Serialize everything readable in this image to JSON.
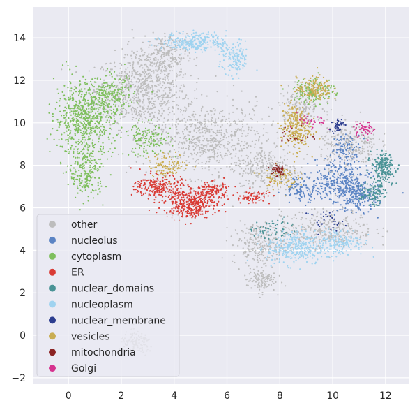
{
  "chart_data": {
    "type": "scatter",
    "title": "",
    "xlabel": "",
    "ylabel": "",
    "xlim": [
      -1.35,
      12.9
    ],
    "ylim": [
      -2.3,
      15.45
    ],
    "xticks": [
      0,
      2,
      4,
      6,
      8,
      10,
      12
    ],
    "yticks": [
      -2,
      0,
      2,
      4,
      6,
      8,
      10,
      12,
      14
    ],
    "grid": true,
    "legend_position": "lower-left",
    "background": "#eaeaf2",
    "series": [
      {
        "name": "other",
        "color": "#bdbdbd",
        "clusters": [
          {
            "cx": 2.8,
            "cy": 11.5,
            "rx": 1.6,
            "ry": 1.6,
            "n": 700
          },
          {
            "cx": 5.3,
            "cy": 9.2,
            "rx": 2.0,
            "ry": 1.6,
            "n": 700
          },
          {
            "cx": 3.6,
            "cy": 13.2,
            "rx": 0.8,
            "ry": 0.9,
            "n": 220
          },
          {
            "cx": 7.6,
            "cy": 7.8,
            "rx": 1.0,
            "ry": 0.9,
            "n": 260
          },
          {
            "cx": 7.2,
            "cy": 4.3,
            "rx": 0.9,
            "ry": 0.9,
            "n": 240
          },
          {
            "cx": 7.3,
            "cy": 2.6,
            "rx": 0.5,
            "ry": 0.5,
            "n": 120
          },
          {
            "cx": 9.8,
            "cy": 5.0,
            "rx": 1.6,
            "ry": 0.8,
            "n": 300
          },
          {
            "cx": 10.6,
            "cy": 9.0,
            "rx": 1.0,
            "ry": 1.0,
            "n": 260
          },
          {
            "cx": 2.6,
            "cy": -0.4,
            "rx": 0.6,
            "ry": 0.5,
            "n": 120
          },
          {
            "cx": 8.8,
            "cy": 10.8,
            "rx": 0.8,
            "ry": 0.8,
            "n": 160
          }
        ]
      },
      {
        "name": "nucleolus",
        "color": "#5b84c4",
        "clusters": [
          {
            "cx": 10.3,
            "cy": 7.2,
            "rx": 1.0,
            "ry": 1.0,
            "n": 360
          },
          {
            "cx": 11.0,
            "cy": 6.5,
            "rx": 0.6,
            "ry": 0.6,
            "n": 180
          },
          {
            "cx": 8.8,
            "cy": 6.9,
            "rx": 0.6,
            "ry": 0.5,
            "n": 100
          },
          {
            "cx": 10.5,
            "cy": 8.8,
            "rx": 0.5,
            "ry": 0.6,
            "n": 80
          }
        ]
      },
      {
        "name": "cytoplasm",
        "color": "#7fbf5e",
        "clusters": [
          {
            "cx": 0.6,
            "cy": 10.2,
            "rx": 1.0,
            "ry": 1.6,
            "n": 650
          },
          {
            "cx": 0.7,
            "cy": 7.6,
            "rx": 0.6,
            "ry": 1.1,
            "n": 200
          },
          {
            "cx": 1.6,
            "cy": 11.3,
            "rx": 0.8,
            "ry": 0.8,
            "n": 200
          },
          {
            "cx": 3.0,
            "cy": 9.2,
            "rx": 0.8,
            "ry": 0.7,
            "n": 150
          },
          {
            "cx": 9.3,
            "cy": 11.5,
            "rx": 0.7,
            "ry": 0.6,
            "n": 120
          }
        ]
      },
      {
        "name": "ER",
        "color": "#d93b35",
        "clusters": [
          {
            "cx": 4.6,
            "cy": 6.2,
            "rx": 0.9,
            "ry": 0.6,
            "n": 380
          },
          {
            "cx": 3.4,
            "cy": 7.0,
            "rx": 0.8,
            "ry": 0.5,
            "n": 220
          },
          {
            "cx": 5.4,
            "cy": 6.8,
            "rx": 0.6,
            "ry": 0.4,
            "n": 120
          },
          {
            "cx": 7.0,
            "cy": 6.5,
            "rx": 0.6,
            "ry": 0.3,
            "n": 70
          }
        ]
      },
      {
        "name": "nuclear_domains",
        "color": "#4a9396",
        "clusters": [
          {
            "cx": 11.9,
            "cy": 7.9,
            "rx": 0.4,
            "ry": 0.6,
            "n": 200
          },
          {
            "cx": 11.5,
            "cy": 6.7,
            "rx": 0.4,
            "ry": 0.5,
            "n": 100
          },
          {
            "cx": 7.8,
            "cy": 5.0,
            "rx": 0.7,
            "ry": 0.5,
            "n": 60
          }
        ]
      },
      {
        "name": "nucleoplasm",
        "color": "#9fd3f0",
        "clusters": [
          {
            "cx": 4.8,
            "cy": 13.8,
            "rx": 1.1,
            "ry": 0.4,
            "n": 280
          },
          {
            "cx": 6.3,
            "cy": 13.0,
            "rx": 0.5,
            "ry": 0.7,
            "n": 140
          },
          {
            "cx": 8.6,
            "cy": 4.1,
            "rx": 1.0,
            "ry": 0.7,
            "n": 320
          },
          {
            "cx": 10.3,
            "cy": 4.4,
            "rx": 0.8,
            "ry": 0.6,
            "n": 160
          }
        ]
      },
      {
        "name": "nuclear_membrane",
        "color": "#2c3d8f",
        "clusters": [
          {
            "cx": 10.2,
            "cy": 9.9,
            "rx": 0.2,
            "ry": 0.3,
            "n": 40
          },
          {
            "cx": 9.8,
            "cy": 5.4,
            "rx": 0.6,
            "ry": 0.4,
            "n": 30
          }
        ]
      },
      {
        "name": "vesicles",
        "color": "#c9ad52",
        "clusters": [
          {
            "cx": 8.6,
            "cy": 9.8,
            "rx": 0.5,
            "ry": 1.0,
            "n": 260
          },
          {
            "cx": 9.3,
            "cy": 11.6,
            "rx": 0.6,
            "ry": 0.5,
            "n": 150
          },
          {
            "cx": 3.8,
            "cy": 8.0,
            "rx": 0.7,
            "ry": 0.5,
            "n": 100
          },
          {
            "cx": 8.0,
            "cy": 7.4,
            "rx": 0.6,
            "ry": 0.5,
            "n": 80
          }
        ]
      },
      {
        "name": "mitochondria",
        "color": "#8b2323",
        "clusters": [
          {
            "cx": 7.9,
            "cy": 7.8,
            "rx": 0.25,
            "ry": 0.3,
            "n": 40
          },
          {
            "cx": 8.6,
            "cy": 9.4,
            "rx": 0.5,
            "ry": 0.5,
            "n": 20
          }
        ]
      },
      {
        "name": "Golgi",
        "color": "#d6338f",
        "clusters": [
          {
            "cx": 11.2,
            "cy": 9.7,
            "rx": 0.4,
            "ry": 0.3,
            "n": 50
          },
          {
            "cx": 9.2,
            "cy": 10.0,
            "rx": 0.5,
            "ry": 0.4,
            "n": 30
          }
        ]
      }
    ]
  }
}
